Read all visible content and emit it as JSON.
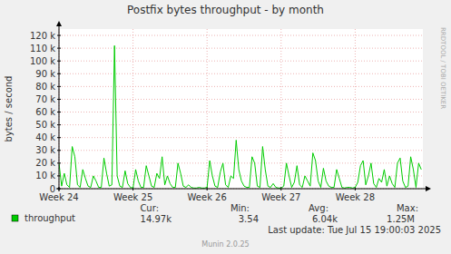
{
  "chart_data": {
    "type": "line",
    "title": "Postfix bytes throughput - by month",
    "y_label": "bytes / second",
    "watermark": "RRDTOOL / TOBI OETIKER",
    "x": [
      0,
      0.25,
      0.5,
      0.75,
      1,
      1.25,
      1.5,
      1.75,
      2,
      2.25,
      2.5,
      2.75,
      3,
      3.25,
      3.5,
      3.75,
      4,
      4.25,
      4.5,
      4.75,
      5,
      5.25,
      5.5,
      5.75,
      6,
      6.25,
      6.5,
      6.75,
      7,
      7.25,
      7.5,
      7.75,
      8,
      8.25,
      8.5,
      8.75,
      9,
      9.25,
      9.5,
      9.75,
      10,
      10.25,
      10.5,
      10.75,
      11,
      11.25,
      11.5,
      11.75,
      12,
      12.25,
      12.5,
      12.75,
      13,
      13.25,
      13.5,
      13.75,
      14,
      14.25,
      14.5,
      14.75,
      15,
      15.25,
      15.5,
      15.75,
      16,
      16.25,
      16.5,
      16.75,
      17,
      17.25,
      17.5,
      17.75,
      18,
      18.25,
      18.5,
      18.75,
      19,
      19.25,
      19.5,
      19.75,
      20,
      20.25,
      20.5,
      20.75,
      21,
      21.25,
      21.5,
      21.75,
      22,
      22.25,
      22.5,
      22.75,
      23,
      23.25,
      23.5,
      23.75,
      24,
      24.25,
      24.5,
      24.75,
      25,
      25.25,
      25.5,
      25.75,
      26,
      26.25,
      26.5,
      26.75,
      27,
      27.25,
      27.5,
      27.75,
      28,
      28.25,
      28.5,
      28.75,
      29,
      29.25,
      29.5,
      29.75,
      30,
      30.25,
      30.5,
      30.75,
      31,
      31.25,
      31.5,
      31.75,
      32,
      32.25,
      32.5,
      32.75,
      33,
      33.25,
      33.5,
      33.75,
      34,
      34.25
    ],
    "series": [
      {
        "name": "throughput",
        "color": "#00cc00",
        "values": [
          20000,
          2000,
          12000,
          3000,
          1000,
          33000,
          25000,
          3000,
          1000,
          15000,
          8000,
          2000,
          1000,
          10000,
          6000,
          1000,
          1000,
          24000,
          12000,
          2000,
          3000,
          112000,
          10000,
          2000,
          1000,
          14000,
          4000,
          1000,
          500,
          15000,
          6000,
          1000,
          1000,
          18000,
          10000,
          2000,
          1000,
          12000,
          8000,
          25000,
          3000,
          10000,
          4000,
          1000,
          1000,
          20000,
          12000,
          2000,
          1000,
          3000,
          1000,
          500,
          500,
          1000,
          500,
          500,
          1000,
          22000,
          10000,
          2000,
          1000,
          13000,
          20000,
          3000,
          1000,
          10000,
          8000,
          38000,
          15000,
          6000,
          2000,
          1000,
          1000,
          25000,
          20000,
          2000,
          1000,
          33000,
          15000,
          2000,
          1000,
          4000,
          1000,
          500,
          500,
          2000,
          20000,
          10000,
          1000,
          5000,
          18000,
          3000,
          1000,
          10000,
          6000,
          2000,
          28000,
          22000,
          6000,
          1000,
          16000,
          6000,
          2000,
          1000,
          1000,
          15000,
          8000,
          1000,
          500,
          1000,
          1000,
          500,
          1000,
          5000,
          18000,
          22000,
          3000,
          10000,
          20000,
          4000,
          1000,
          8000,
          5000,
          15000,
          2000,
          10000,
          4000,
          1000,
          20000,
          24000,
          6000,
          1000,
          2000,
          25000,
          15000,
          1000,
          20000,
          15000
        ]
      }
    ],
    "xlim": [
      0,
      34.4
    ],
    "xticks": [
      {
        "value": 0,
        "label": "Week 24"
      },
      {
        "value": 7,
        "label": "Week 25"
      },
      {
        "value": 14,
        "label": "Week 26"
      },
      {
        "value": 21,
        "label": "Week 27"
      },
      {
        "value": 28,
        "label": "Week 28"
      }
    ],
    "ylim": [
      0,
      125000
    ],
    "yticks": [
      0,
      {
        "value": 10000,
        "label": "10 k"
      },
      {
        "value": 20000,
        "label": "20 k"
      },
      {
        "value": 30000,
        "label": "30 k"
      },
      {
        "value": 40000,
        "label": "40 k"
      },
      {
        "value": 50000,
        "label": "50 k"
      },
      {
        "value": 60000,
        "label": "60 k"
      },
      {
        "value": 70000,
        "label": "70 k"
      },
      {
        "value": 80000,
        "label": "80 k"
      },
      {
        "value": 90000,
        "label": "90 k"
      },
      {
        "value": 100000,
        "label": "100 k"
      },
      {
        "value": 110000,
        "label": "110 k"
      },
      {
        "value": 120000,
        "label": "120 k"
      }
    ],
    "grid": true,
    "stats_labels": [
      "Cur:",
      "Min:",
      "Avg:",
      "Max:"
    ],
    "stats": [
      "14.97k",
      "3.54",
      "6.04k",
      "1.25M"
    ],
    "last_update": "Last update:  Tue Jul 15 19:00:03 2025",
    "footer": "Munin 2.0.25"
  }
}
